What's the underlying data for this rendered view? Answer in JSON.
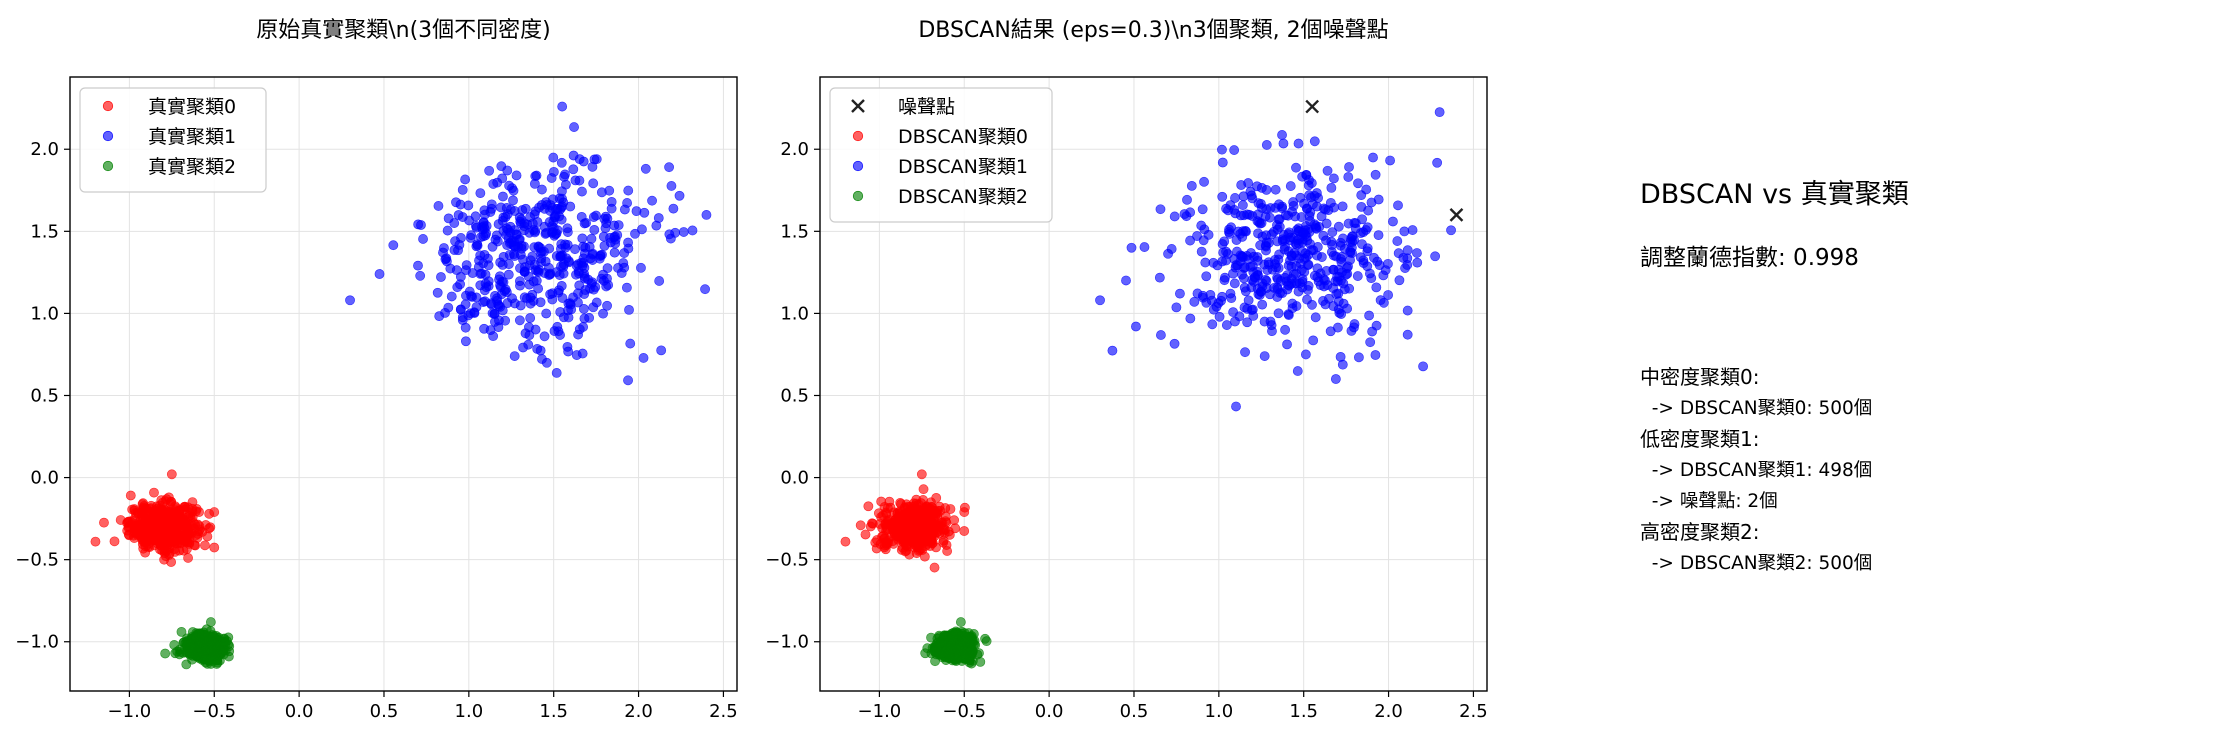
{
  "panels": [
    {
      "title": "原始真實聚類\\n(3個不同密度)",
      "legend": [
        {
          "label": "真實聚類0",
          "marker": "circle",
          "color": "#ff0000"
        },
        {
          "label": "真實聚類1",
          "marker": "circle",
          "color": "#0000ff"
        },
        {
          "label": "真實聚類2",
          "marker": "circle",
          "color": "#008000"
        }
      ]
    },
    {
      "title": "DBSCAN結果 (eps=0.3)\\n3個聚類, 2個噪聲點",
      "legend": [
        {
          "label": "噪聲點",
          "marker": "x",
          "color": "#222222"
        },
        {
          "label": "DBSCAN聚類0",
          "marker": "circle",
          "color": "#ff0000"
        },
        {
          "label": "DBSCAN聚類1",
          "marker": "circle",
          "color": "#0000ff"
        },
        {
          "label": "DBSCAN聚類2",
          "marker": "circle",
          "color": "#008000"
        }
      ]
    }
  ],
  "chart_data": [
    {
      "type": "scatter",
      "title": "原始真實聚類\\n(3個不同密度)",
      "xlim": [
        -1.35,
        2.58
      ],
      "ylim": [
        -1.3,
        2.44
      ],
      "xticks": [
        -1.0,
        -0.5,
        0.0,
        0.5,
        1.0,
        1.5,
        2.0,
        2.5
      ],
      "xtick_labels": [
        "−1.0",
        "−0.5",
        "0.0",
        "0.5",
        "1.0",
        "1.5",
        "2.0",
        "2.5"
      ],
      "yticks": [
        -1.0,
        -0.5,
        0.0,
        0.5,
        1.0,
        1.5,
        2.0
      ],
      "ytick_labels": [
        "−1.0",
        "−0.5",
        "0.0",
        "0.5",
        "1.0",
        "1.5",
        "2.0"
      ],
      "grid": true,
      "legend_position": "upper-left",
      "series": [
        {
          "name": "真實聚類0",
          "color": "#ff0000",
          "n": 500,
          "center": [
            -0.8,
            -0.3
          ],
          "spread": [
            0.1,
            0.07
          ],
          "visible_extremes": [
            [
              -0.75,
              0.02
            ],
            [
              -1.2,
              -0.39
            ],
            [
              -0.5,
              -0.21
            ]
          ]
        },
        {
          "name": "真實聚類1",
          "color": "#0000ff",
          "n": 500,
          "center": [
            1.4,
            1.35
          ],
          "spread": [
            0.34,
            0.27
          ],
          "visible_extremes": [
            [
              1.55,
              2.26
            ],
            [
              2.4,
              1.6
            ],
            [
              0.3,
              1.08
            ],
            [
              1.27,
              0.74
            ]
          ]
        },
        {
          "name": "真實聚類2",
          "color": "#008000",
          "n": 500,
          "center": [
            -0.55,
            -1.03
          ],
          "spread": [
            0.06,
            0.04
          ],
          "visible_extremes": [
            [
              -0.52,
              -0.88
            ],
            [
              -0.73,
              -1.07
            ]
          ]
        }
      ]
    },
    {
      "type": "scatter",
      "title": "DBSCAN結果 (eps=0.3)\\n3個聚類, 2個噪聲點",
      "xlim": [
        -1.35,
        2.58
      ],
      "ylim": [
        -1.3,
        2.44
      ],
      "xticks": [
        -1.0,
        -0.5,
        0.0,
        0.5,
        1.0,
        1.5,
        2.0,
        2.5
      ],
      "xtick_labels": [
        "−1.0",
        "−0.5",
        "0.0",
        "0.5",
        "1.0",
        "1.5",
        "2.0",
        "2.5"
      ],
      "yticks": [
        -1.0,
        -0.5,
        0.0,
        0.5,
        1.0,
        1.5,
        2.0
      ],
      "ytick_labels": [
        "−1.0",
        "−0.5",
        "0.0",
        "0.5",
        "1.0",
        "1.5",
        "2.0"
      ],
      "grid": true,
      "legend_position": "upper-left",
      "noise_points": [
        [
          1.55,
          2.26
        ],
        [
          2.4,
          1.6
        ]
      ],
      "series": [
        {
          "name": "DBSCAN聚類0",
          "color": "#ff0000",
          "n": 500,
          "center": [
            -0.8,
            -0.3
          ],
          "spread": [
            0.1,
            0.07
          ],
          "visible_extremes": [
            [
              -0.75,
              0.02
            ],
            [
              -1.2,
              -0.39
            ],
            [
              -0.5,
              -0.21
            ]
          ]
        },
        {
          "name": "DBSCAN聚類1",
          "color": "#0000ff",
          "n": 498,
          "center": [
            1.4,
            1.35
          ],
          "spread": [
            0.34,
            0.27
          ],
          "visible_extremes": [
            [
              0.3,
              1.08
            ],
            [
              1.27,
              0.74
            ]
          ]
        },
        {
          "name": "DBSCAN聚類2",
          "color": "#008000",
          "n": 500,
          "center": [
            -0.55,
            -1.03
          ],
          "spread": [
            0.06,
            0.04
          ],
          "visible_extremes": [
            [
              -0.52,
              -0.88
            ],
            [
              -0.73,
              -1.07
            ]
          ]
        }
      ]
    }
  ],
  "sidebar": {
    "heading": "DBSCAN vs 真實聚類",
    "ari": "調整蘭德指數: 0.998",
    "lines": [
      "中密度聚類0:",
      "  -> DBSCAN聚類0: 500個",
      "低密度聚類1:",
      "  -> DBSCAN聚類1: 498個",
      "  -> 噪聲點: 2個",
      "高密度聚類2:",
      "  -> DBSCAN聚類2: 500個"
    ]
  }
}
